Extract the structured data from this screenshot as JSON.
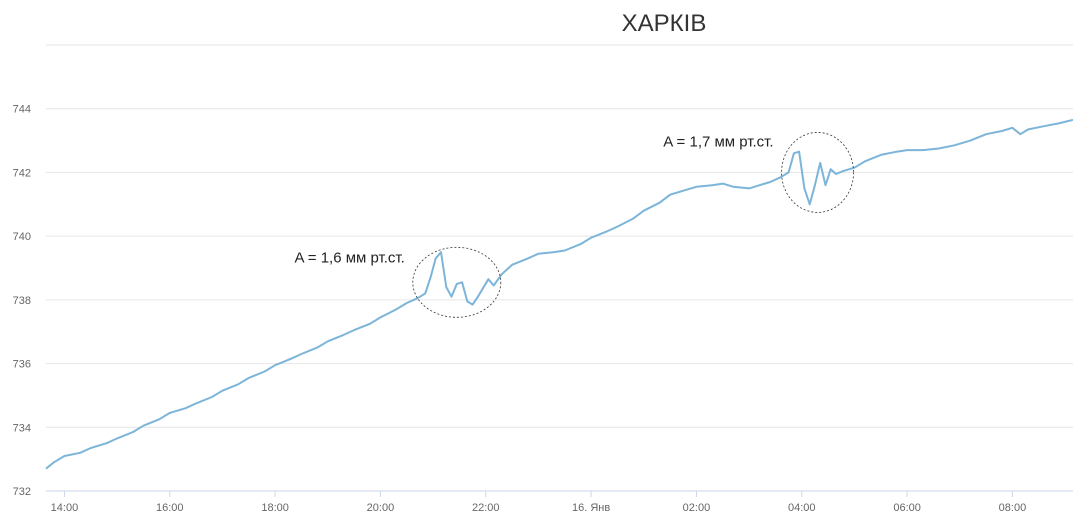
{
  "chart_data": {
    "type": "line",
    "title": "ХАРКІВ",
    "ylim": [
      732,
      746
    ],
    "xlim": [
      -0.35,
      19.15
    ],
    "grid": true,
    "y_ticks": [
      "732",
      "734",
      "736",
      "738",
      "740",
      "742",
      "744"
    ],
    "x_ticks": [
      {
        "label": "14:00",
        "x": 0
      },
      {
        "label": "16:00",
        "x": 2
      },
      {
        "label": "18:00",
        "x": 4
      },
      {
        "label": "20:00",
        "x": 6
      },
      {
        "label": "22:00",
        "x": 8
      },
      {
        "label": "16. Янв",
        "x": 10
      },
      {
        "label": "02:00",
        "x": 12
      },
      {
        "label": "04:00",
        "x": 14
      },
      {
        "label": "06:00",
        "x": 16
      },
      {
        "label": "08:00",
        "x": 18
      }
    ],
    "series": [
      {
        "color": "#7cb5d9",
        "points": [
          [
            -0.35,
            732.7
          ],
          [
            -0.2,
            732.9
          ],
          [
            0.0,
            733.1
          ],
          [
            0.3,
            733.2
          ],
          [
            0.5,
            733.35
          ],
          [
            0.8,
            733.5
          ],
          [
            1.0,
            733.65
          ],
          [
            1.3,
            733.85
          ],
          [
            1.5,
            734.05
          ],
          [
            1.8,
            734.25
          ],
          [
            2.0,
            734.45
          ],
          [
            2.3,
            734.6
          ],
          [
            2.5,
            734.75
          ],
          [
            2.8,
            734.95
          ],
          [
            3.0,
            735.15
          ],
          [
            3.3,
            735.35
          ],
          [
            3.5,
            735.55
          ],
          [
            3.8,
            735.75
          ],
          [
            4.0,
            735.95
          ],
          [
            4.3,
            736.15
          ],
          [
            4.5,
            736.3
          ],
          [
            4.8,
            736.5
          ],
          [
            5.0,
            736.7
          ],
          [
            5.3,
            736.9
          ],
          [
            5.5,
            737.05
          ],
          [
            5.8,
            737.25
          ],
          [
            6.0,
            737.45
          ],
          [
            6.3,
            737.7
          ],
          [
            6.5,
            737.9
          ],
          [
            6.7,
            738.05
          ],
          [
            6.85,
            738.2
          ],
          [
            6.95,
            738.7
          ],
          [
            7.05,
            739.3
          ],
          [
            7.15,
            739.5
          ],
          [
            7.25,
            738.4
          ],
          [
            7.35,
            738.1
          ],
          [
            7.45,
            738.5
          ],
          [
            7.55,
            738.55
          ],
          [
            7.65,
            737.95
          ],
          [
            7.75,
            737.85
          ],
          [
            7.85,
            738.1
          ],
          [
            8.05,
            738.65
          ],
          [
            8.15,
            738.45
          ],
          [
            8.3,
            738.8
          ],
          [
            8.5,
            739.1
          ],
          [
            8.8,
            739.3
          ],
          [
            9.0,
            739.45
          ],
          [
            9.3,
            739.5
          ],
          [
            9.5,
            739.55
          ],
          [
            9.8,
            739.75
          ],
          [
            10.0,
            739.95
          ],
          [
            10.3,
            740.15
          ],
          [
            10.5,
            740.3
          ],
          [
            10.8,
            740.55
          ],
          [
            11.0,
            740.8
          ],
          [
            11.3,
            741.05
          ],
          [
            11.5,
            741.3
          ],
          [
            11.8,
            741.45
          ],
          [
            12.0,
            741.55
          ],
          [
            12.3,
            741.6
          ],
          [
            12.5,
            741.65
          ],
          [
            12.7,
            741.55
          ],
          [
            13.0,
            741.5
          ],
          [
            13.2,
            741.6
          ],
          [
            13.4,
            741.7
          ],
          [
            13.6,
            741.85
          ],
          [
            13.75,
            742.0
          ],
          [
            13.85,
            742.6
          ],
          [
            13.95,
            742.65
          ],
          [
            14.05,
            741.5
          ],
          [
            14.15,
            741.0
          ],
          [
            14.25,
            741.6
          ],
          [
            14.35,
            742.3
          ],
          [
            14.45,
            741.6
          ],
          [
            14.55,
            742.1
          ],
          [
            14.65,
            741.95
          ],
          [
            14.8,
            742.05
          ],
          [
            15.0,
            742.15
          ],
          [
            15.2,
            742.35
          ],
          [
            15.5,
            742.55
          ],
          [
            15.8,
            742.65
          ],
          [
            16.0,
            742.7
          ],
          [
            16.3,
            742.7
          ],
          [
            16.6,
            742.75
          ],
          [
            16.9,
            742.85
          ],
          [
            17.2,
            743.0
          ],
          [
            17.5,
            743.2
          ],
          [
            17.8,
            743.3
          ],
          [
            18.0,
            743.4
          ],
          [
            18.15,
            743.2
          ],
          [
            18.3,
            743.35
          ],
          [
            18.6,
            743.45
          ],
          [
            18.9,
            743.55
          ],
          [
            19.15,
            743.65
          ]
        ]
      }
    ],
    "annotations": [
      {
        "text": "A = 1,6 мм рт.ст.",
        "x": 7.45,
        "y": 738.55
      },
      {
        "text": "A = 1,7 мм рт.ст.",
        "x": 14.3,
        "y": 742.0
      }
    ]
  }
}
